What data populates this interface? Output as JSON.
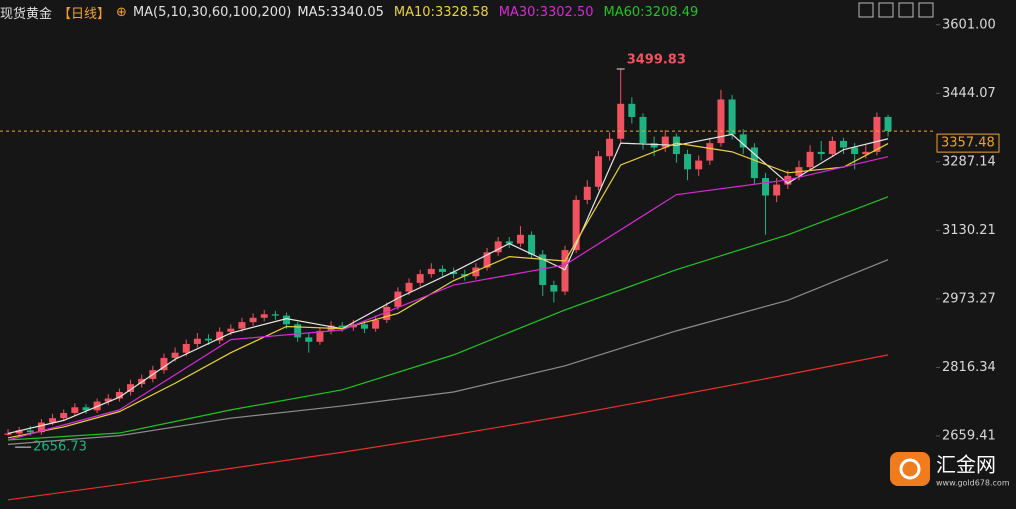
{
  "chart_data": {
    "type": "candlestick",
    "title": "现货黄金",
    "period": "【日线】",
    "ma_label": "MA(5,10,30,60,100,200)",
    "up_color": "#f0525f",
    "down_color": "#1fb384",
    "open": [
      2662,
      2665,
      2672,
      2668,
      2690,
      2700,
      2712,
      2725,
      2718,
      2738,
      2745,
      2760,
      2778,
      2790,
      2810,
      2838,
      2850,
      2870,
      2882,
      2878,
      2898,
      2905,
      2920,
      2930,
      2938,
      2935,
      2915,
      2885,
      2875,
      2900,
      2912,
      2908,
      2915,
      2905,
      2925,
      2955,
      2990,
      3010,
      3030,
      3042,
      3035,
      3030,
      3025,
      3045,
      3080,
      3105,
      3100,
      3120,
      3075,
      3005,
      2990,
      3085,
      3200,
      3230,
      3300,
      3340,
      3420,
      3390,
      3330,
      3320,
      3345,
      3305,
      3270,
      3290,
      3330,
      3430,
      3350,
      3320,
      3250,
      3210,
      3235,
      3255,
      3275,
      3310,
      3305,
      3335,
      3320,
      3305,
      3310,
      3390
    ],
    "high": [
      2675,
      2680,
      2682,
      2698,
      2710,
      2720,
      2734,
      2732,
      2745,
      2755,
      2768,
      2788,
      2800,
      2820,
      2848,
      2862,
      2880,
      2895,
      2892,
      2908,
      2915,
      2930,
      2940,
      2948,
      2946,
      2942,
      2920,
      2895,
      2908,
      2922,
      2920,
      2925,
      2922,
      2935,
      2965,
      3000,
      3020,
      3040,
      3055,
      3050,
      3045,
      3040,
      3055,
      3090,
      3115,
      3115,
      3140,
      3128,
      3085,
      3015,
      3095,
      3210,
      3245,
      3312,
      3355,
      3499.83,
      3435,
      3398,
      3345,
      3360,
      3352,
      3315,
      3302,
      3342,
      3452,
      3440,
      3362,
      3330,
      3262,
      3250,
      3268,
      3290,
      3325,
      3335,
      3345,
      3342,
      3330,
      3325,
      3400,
      3395
    ],
    "low": [
      2660,
      2656.73,
      2660,
      2662,
      2684,
      2694,
      2705,
      2710,
      2712,
      2730,
      2738,
      2752,
      2770,
      2782,
      2802,
      2830,
      2842,
      2862,
      2868,
      2870,
      2890,
      2898,
      2912,
      2922,
      2925,
      2905,
      2875,
      2850,
      2868,
      2892,
      2898,
      2900,
      2895,
      2898,
      2918,
      2948,
      2982,
      3002,
      3022,
      3025,
      3020,
      3015,
      3018,
      3038,
      3072,
      3090,
      3092,
      3065,
      2980,
      2965,
      2982,
      3078,
      3190,
      3222,
      3290,
      3332,
      3375,
      3315,
      3300,
      3310,
      3285,
      3245,
      3255,
      3280,
      3322,
      3338,
      3305,
      3235,
      3120,
      3195,
      3225,
      3245,
      3268,
      3290,
      3298,
      3305,
      3270,
      3295,
      3302,
      3345
    ],
    "close": [
      2665,
      2672,
      2668,
      2690,
      2700,
      2712,
      2725,
      2718,
      2738,
      2745,
      2760,
      2778,
      2790,
      2810,
      2838,
      2850,
      2870,
      2882,
      2878,
      2898,
      2905,
      2920,
      2930,
      2938,
      2935,
      2915,
      2885,
      2875,
      2900,
      2912,
      2908,
      2915,
      2905,
      2925,
      2955,
      2990,
      3010,
      3030,
      3042,
      3035,
      3030,
      3025,
      3045,
      3080,
      3105,
      3100,
      3120,
      3075,
      3005,
      2990,
      3085,
      3200,
      3230,
      3300,
      3340,
      3420,
      3390,
      3330,
      3320,
      3345,
      3305,
      3270,
      3290,
      3330,
      3430,
      3350,
      3320,
      3250,
      3210,
      3235,
      3255,
      3275,
      3310,
      3305,
      3335,
      3320,
      3305,
      3310,
      3390,
      3357.48
    ],
    "series": [
      {
        "name": "MA5:3340.05",
        "color": "#e6e6e6",
        "x": [
          0,
          5,
          10,
          15,
          20,
          25,
          30,
          35,
          40,
          45,
          50,
          55,
          60,
          65,
          70,
          75,
          79
        ],
        "values": [
          2665,
          2695,
          2748,
          2835,
          2895,
          2928,
          2905,
          2975,
          3035,
          3100,
          3040,
          3330,
          3325,
          3350,
          3238,
          3315,
          3340
        ]
      },
      {
        "name": "MA10:3328.58",
        "color": "#e8d23a",
        "x": [
          0,
          5,
          10,
          15,
          20,
          25,
          30,
          35,
          40,
          45,
          50,
          55,
          60,
          65,
          70,
          75,
          79
        ],
        "values": [
          2655,
          2680,
          2715,
          2780,
          2850,
          2910,
          2905,
          2940,
          3015,
          3070,
          3060,
          3280,
          3330,
          3310,
          3262,
          3275,
          3329
        ]
      },
      {
        "name": "MA30:3302.50",
        "color": "#d62ad6",
        "x": [
          0,
          10,
          20,
          30,
          40,
          50,
          60,
          70,
          79
        ],
        "values": [
          2650,
          2719,
          2880,
          2902,
          3005,
          3051,
          3212,
          3246,
          3299
        ]
      },
      {
        "name": "MA60:3208.49",
        "color": "#22c322",
        "x": [
          0,
          10,
          20,
          30,
          40,
          50,
          60,
          70,
          79
        ],
        "values": [
          2650,
          2666,
          2719,
          2765,
          2845,
          2948,
          3040,
          3120,
          3207
        ]
      },
      {
        "color": "#8c8c8c",
        "x": [
          0,
          10,
          20,
          30,
          40,
          50,
          60,
          70,
          79
        ],
        "values": [
          2640,
          2660,
          2700,
          2728,
          2760,
          2820,
          2900,
          2970,
          3063
        ]
      },
      {
        "color": "#e8302a",
        "x": [
          0,
          10,
          20,
          30,
          40,
          50,
          60,
          70,
          79
        ],
        "values": [
          2513,
          2548,
          2585,
          2622,
          2662,
          2705,
          2752,
          2800,
          2845
        ]
      }
    ],
    "ylim": [
      2492,
      3612
    ],
    "yticks": [
      {
        "value": 3601,
        "label": "3601.00"
      },
      3444.07,
      3287.14,
      3130.21,
      2973.27,
      2816.34,
      2659.41
    ],
    "last_price": 3357.48,
    "last_price_color": "#f0a030"
  },
  "watermark": {
    "name": "汇金网",
    "url": "www.gold678.com"
  }
}
